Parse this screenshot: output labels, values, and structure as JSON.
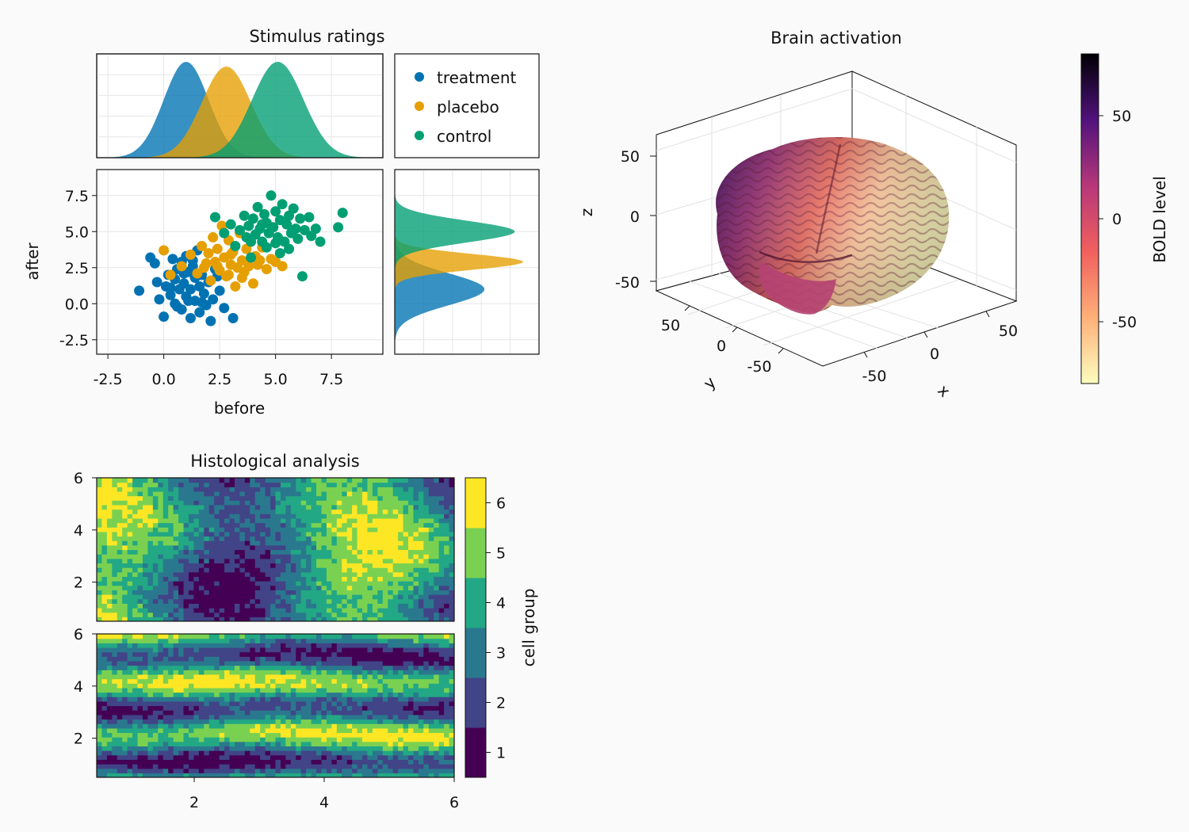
{
  "figure": {
    "background": "#fafafa",
    "colors": {
      "treatment": "#0072b2",
      "placebo": "#e69f00",
      "control": "#009e73"
    }
  },
  "chart_data": [
    {
      "type": "scatter",
      "title": "Stimulus ratings",
      "xlabel": "before",
      "ylabel": "after",
      "xlim": [
        -3.0,
        9.8
      ],
      "ylim": [
        -3.5,
        9.3
      ],
      "xticks": [
        "-2.5",
        "0.0",
        "2.5",
        "5.0",
        "7.5"
      ],
      "xtick_values": [
        -2.5,
        0.0,
        2.5,
        5.0,
        7.5
      ],
      "yticks": [
        "-2.5",
        "0.0",
        "2.5",
        "5.0",
        "7.5"
      ],
      "ytick_values": [
        -2.5,
        0.0,
        2.5,
        5.0,
        7.5
      ],
      "grid": true,
      "legend_position": "top-right panel",
      "series": [
        {
          "name": "treatment",
          "color": "#0072b2",
          "points": [
            [
              -1.1,
              0.9
            ],
            [
              -0.6,
              3.2
            ],
            [
              -0.4,
              2.8
            ],
            [
              -0.3,
              1.5
            ],
            [
              -0.2,
              0.3
            ],
            [
              0.0,
              -0.9
            ],
            [
              0.1,
              1.2
            ],
            [
              0.2,
              2.0
            ],
            [
              0.3,
              0.6
            ],
            [
              0.4,
              3.1
            ],
            [
              0.5,
              1.7
            ],
            [
              0.5,
              0.0
            ],
            [
              0.6,
              2.4
            ],
            [
              0.7,
              1.0
            ],
            [
              0.8,
              -0.4
            ],
            [
              0.8,
              2.9
            ],
            [
              0.9,
              1.4
            ],
            [
              1.0,
              0.5
            ],
            [
              1.0,
              3.3
            ],
            [
              1.1,
              2.2
            ],
            [
              1.2,
              -1.0
            ],
            [
              1.2,
              1.0
            ],
            [
              1.3,
              2.6
            ],
            [
              1.4,
              0.2
            ],
            [
              1.4,
              1.8
            ],
            [
              1.5,
              3.7
            ],
            [
              1.6,
              -0.6
            ],
            [
              1.6,
              1.2
            ],
            [
              1.7,
              2.0
            ],
            [
              1.8,
              0.7
            ],
            [
              1.9,
              -0.1
            ],
            [
              2.0,
              1.5
            ],
            [
              2.1,
              -1.2
            ],
            [
              2.2,
              0.3
            ],
            [
              2.3,
              2.4
            ],
            [
              2.5,
              0.9
            ],
            [
              2.7,
              -0.3
            ],
            [
              3.1,
              -1.0
            ],
            [
              1.3,
              3.0
            ],
            [
              0.9,
              2.1
            ],
            [
              0.3,
              1.1
            ],
            [
              1.7,
              0.1
            ],
            [
              2.4,
              1.9
            ],
            [
              1.1,
              0.2
            ],
            [
              0.6,
              -0.2
            ]
          ]
        },
        {
          "name": "placebo",
          "color": "#e69f00",
          "points": [
            [
              0.0,
              3.7
            ],
            [
              0.3,
              2.0
            ],
            [
              0.8,
              2.6
            ],
            [
              1.2,
              3.4
            ],
            [
              1.5,
              2.1
            ],
            [
              1.7,
              4.0
            ],
            [
              1.9,
              2.8
            ],
            [
              2.0,
              3.5
            ],
            [
              2.1,
              1.6
            ],
            [
              2.2,
              4.6
            ],
            [
              2.3,
              2.9
            ],
            [
              2.4,
              3.8
            ],
            [
              2.5,
              2.3
            ],
            [
              2.6,
              5.4
            ],
            [
              2.7,
              3.2
            ],
            [
              2.8,
              1.9
            ],
            [
              2.9,
              4.4
            ],
            [
              3.0,
              2.7
            ],
            [
              3.1,
              3.6
            ],
            [
              3.2,
              1.2
            ],
            [
              3.3,
              2.5
            ],
            [
              3.4,
              4.9
            ],
            [
              3.5,
              3.0
            ],
            [
              3.6,
              2.2
            ],
            [
              3.7,
              3.8
            ],
            [
              3.8,
              2.6
            ],
            [
              4.0,
              1.4
            ],
            [
              4.1,
              3.3
            ],
            [
              4.2,
              2.7
            ],
            [
              4.4,
              3.9
            ],
            [
              4.6,
              2.4
            ],
            [
              4.8,
              3.1
            ],
            [
              5.0,
              2.9
            ],
            [
              5.3,
              2.6
            ],
            [
              1.8,
              2.5
            ],
            [
              2.4,
              2.6
            ],
            [
              3.0,
              3.4
            ],
            [
              3.5,
              1.8
            ],
            [
              2.9,
              2.0
            ],
            [
              4.3,
              3.0
            ]
          ]
        },
        {
          "name": "control",
          "color": "#009e73",
          "points": [
            [
              2.3,
              6.0
            ],
            [
              2.7,
              4.9
            ],
            [
              3.0,
              5.5
            ],
            [
              3.2,
              4.0
            ],
            [
              3.4,
              5.1
            ],
            [
              3.6,
              6.1
            ],
            [
              3.7,
              4.6
            ],
            [
              3.8,
              5.4
            ],
            [
              3.9,
              3.2
            ],
            [
              4.0,
              5.9
            ],
            [
              4.1,
              4.8
            ],
            [
              4.2,
              6.7
            ],
            [
              4.3,
              5.2
            ],
            [
              4.4,
              4.3
            ],
            [
              4.5,
              6.2
            ],
            [
              4.6,
              5.6
            ],
            [
              4.7,
              4.9
            ],
            [
              4.8,
              7.5
            ],
            [
              4.9,
              5.3
            ],
            [
              5.0,
              6.4
            ],
            [
              5.1,
              4.6
            ],
            [
              5.2,
              5.8
            ],
            [
              5.3,
              6.9
            ],
            [
              5.4,
              4.3
            ],
            [
              5.5,
              5.5
            ],
            [
              5.6,
              6.1
            ],
            [
              5.7,
              4.9
            ],
            [
              5.8,
              6.6
            ],
            [
              5.9,
              5.2
            ],
            [
              6.0,
              4.5
            ],
            [
              6.1,
              5.9
            ],
            [
              6.2,
              1.9
            ],
            [
              6.3,
              5.1
            ],
            [
              6.5,
              6.0
            ],
            [
              6.6,
              4.7
            ],
            [
              6.8,
              5.2
            ],
            [
              7.0,
              4.3
            ],
            [
              7.8,
              5.3
            ],
            [
              8.0,
              6.3
            ],
            [
              4.6,
              3.9
            ],
            [
              5.2,
              3.5
            ],
            [
              3.9,
              4.3
            ],
            [
              5.6,
              3.8
            ],
            [
              4.4,
              5.5
            ],
            [
              5.0,
              4.2
            ]
          ]
        }
      ]
    },
    {
      "type": "area",
      "title": "",
      "subplot": "marginal density of before (top)",
      "grid": true,
      "series": [
        {
          "name": "treatment",
          "color": "#0072b2",
          "mean": 1.0,
          "sd": 1.0,
          "peak": 1.0
        },
        {
          "name": "placebo",
          "color": "#e69f00",
          "mean": 2.8,
          "sd": 1.1,
          "peak": 0.95
        },
        {
          "name": "control",
          "color": "#009e73",
          "mean": 5.1,
          "sd": 1.15,
          "peak": 1.0
        }
      ]
    },
    {
      "type": "area",
      "title": "",
      "subplot": "marginal density of after (right)",
      "grid": true,
      "series": [
        {
          "name": "treatment",
          "color": "#0072b2",
          "mean": 1.0,
          "sd": 1.1,
          "peak": 0.65
        },
        {
          "name": "placebo",
          "color": "#e69f00",
          "mean": 2.9,
          "sd": 0.55,
          "peak": 0.93
        },
        {
          "name": "control",
          "color": "#009e73",
          "mean": 5.0,
          "sd": 0.75,
          "peak": 0.87
        }
      ]
    },
    {
      "type": "heatmap",
      "title": "Brain activation",
      "subplot": "3d surface",
      "xlabel": "x",
      "ylabel": "y",
      "zlabel": "z",
      "xticks": [
        "-50",
        "0",
        "50"
      ],
      "yticks": [
        "-50",
        "0",
        "50"
      ],
      "zticks": [
        "-50",
        "0",
        "50"
      ],
      "colorbar_label": "BOLD level",
      "colorbar_ticks": [
        "-50",
        "0",
        "50"
      ],
      "colorbar_tick_values": [
        -50,
        0,
        50
      ],
      "colorbar_range": [
        -80,
        80
      ],
      "colormap": [
        "#fcfdbf",
        "#fe9f6d",
        "#de4968",
        "#8c2981",
        "#3b0f70",
        "#000004"
      ]
    },
    {
      "type": "heatmap",
      "title": "Histological analysis",
      "subplot": "contourf, two panels",
      "xlim": [
        0.5,
        6.0
      ],
      "ylim": [
        0.5,
        6.0
      ],
      "xticks": [
        "2",
        "4",
        "6"
      ],
      "xtick_values": [
        2,
        4,
        6
      ],
      "yticks": [
        "2",
        "4",
        "6"
      ],
      "ytick_values": [
        2,
        4,
        6
      ],
      "colorbar_label": "cell group",
      "colorbar_ticks": [
        "1",
        "2",
        "3",
        "4",
        "5",
        "6"
      ],
      "levels": [
        1,
        2,
        3,
        4,
        5,
        6
      ],
      "level_colors": [
        "#440154",
        "#414487",
        "#2a788e",
        "#22a884",
        "#7ad151",
        "#fde725"
      ]
    }
  ],
  "legend": [
    {
      "label": "treatment",
      "color": "#0072b2"
    },
    {
      "label": "placebo",
      "color": "#e69f00"
    },
    {
      "label": "control",
      "color": "#009e73"
    }
  ]
}
